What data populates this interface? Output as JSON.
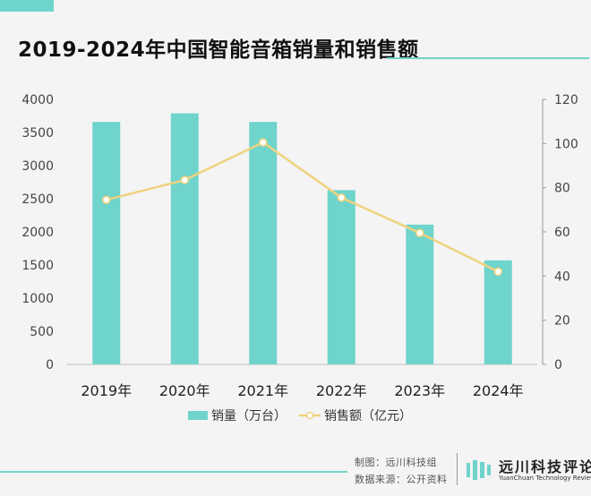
{
  "header": {
    "title": "2019-2024年中国智能音箱销量和销售额"
  },
  "colors": {
    "bar": "#6fd4cb",
    "line": "#f0d27e",
    "marker_fill": "#ffffff",
    "accent": "#6fd4cb"
  },
  "chart_data": {
    "type": "bar",
    "categories": [
      "2019年",
      "2020年",
      "2021年",
      "2022年",
      "2023年",
      "2024年"
    ],
    "series": [
      {
        "name": "销量（万台）",
        "type": "bar",
        "axis": "left",
        "values": [
          3660,
          3790,
          3660,
          2630,
          2110,
          1570
        ]
      },
      {
        "name": "销售额（亿元）",
        "type": "line",
        "axis": "right",
        "values": [
          74.5,
          83.5,
          100.5,
          75.5,
          59.5,
          42
        ]
      }
    ],
    "left_axis": {
      "ylim": [
        0,
        4000
      ],
      "ticks": [
        "0",
        "500",
        "1000",
        "1500",
        "2000",
        "2500",
        "3000",
        "3500",
        "4000"
      ]
    },
    "right_axis": {
      "ylim": [
        0,
        120
      ],
      "ticks": [
        "0",
        "20",
        "40",
        "60",
        "80",
        "100",
        "120"
      ]
    },
    "grid": false,
    "legend_position": "bottom-center"
  },
  "footer": {
    "maker": "制图：远川科技组",
    "source": "数据来源：公开资料",
    "brand_name": "远川科技评论",
    "brand_sub": "YuanChuan Technology Review"
  }
}
